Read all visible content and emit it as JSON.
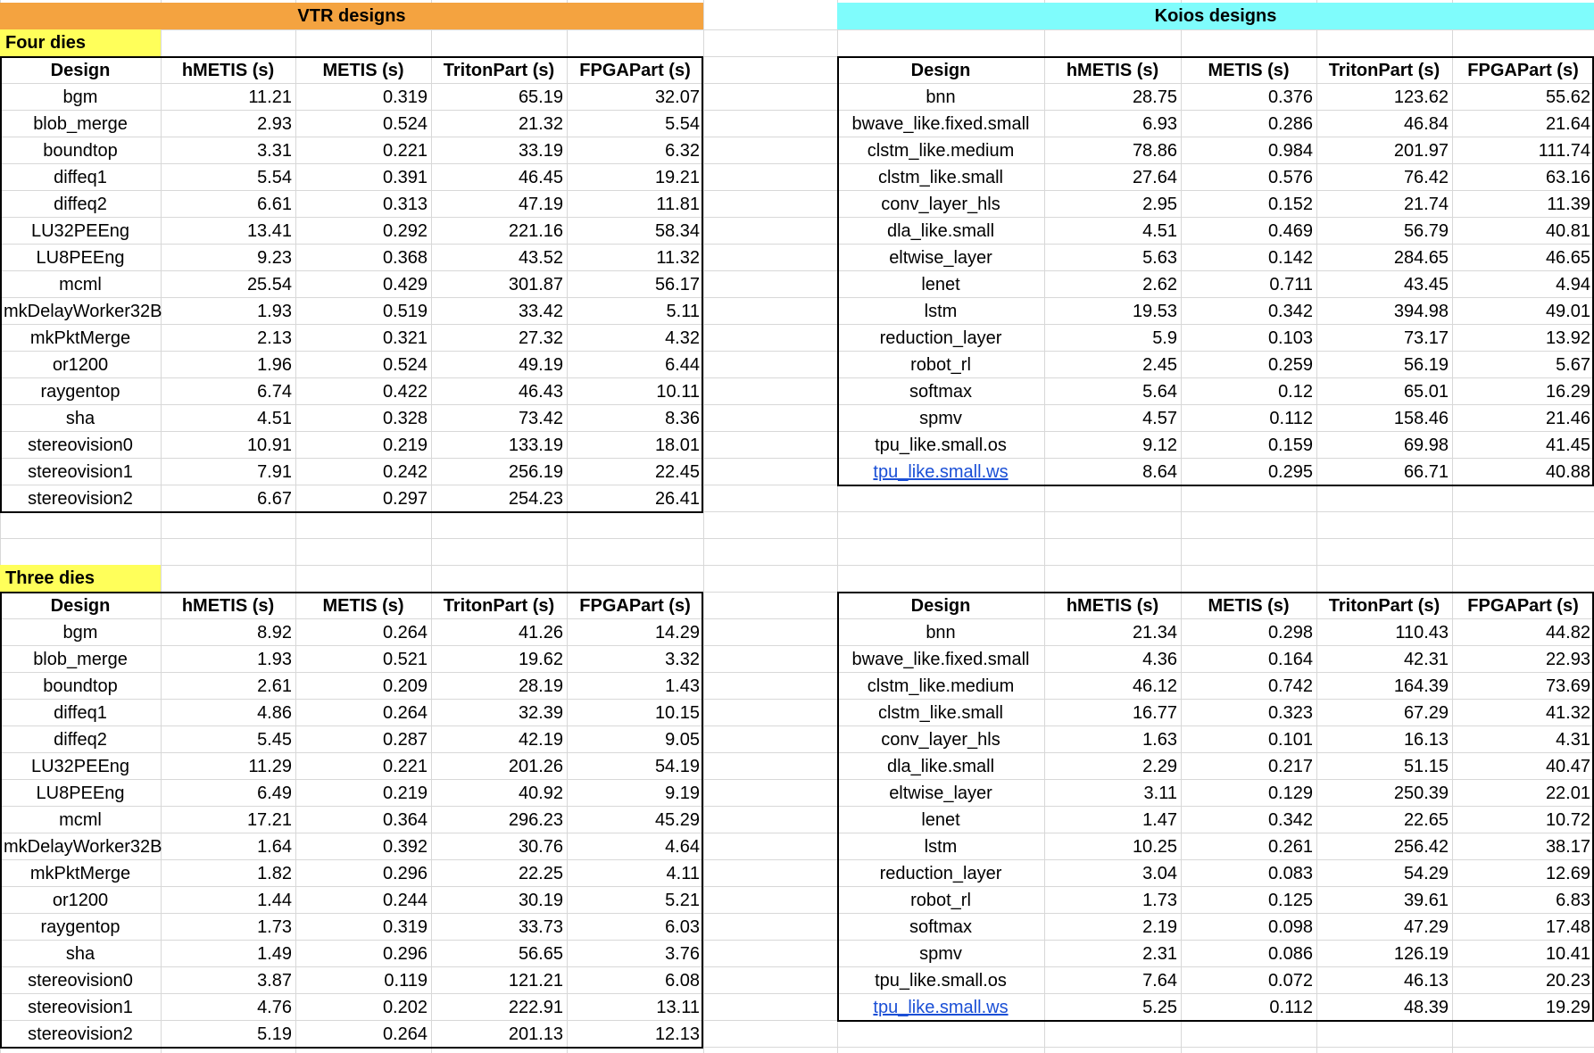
{
  "banners": {
    "vtr": {
      "label": "VTR designs",
      "color": "#f4a340"
    },
    "koios": {
      "label": "Koios designs",
      "color": "#7ffcfc"
    }
  },
  "sections": {
    "four": {
      "label": "Four dies",
      "color": "#ffff5a"
    },
    "three": {
      "label": "Three dies",
      "color": "#ffff5a"
    }
  },
  "columns": [
    "Design",
    "hMETIS (s)",
    "METIS (s)",
    "TritonPart (s)",
    "FPGAPart (s)"
  ],
  "tables": {
    "vtr_four": [
      [
        "bgm",
        "11.21",
        "0.319",
        "65.19",
        "32.07"
      ],
      [
        "blob_merge",
        "2.93",
        "0.524",
        "21.32",
        "5.54"
      ],
      [
        "boundtop",
        "3.31",
        "0.221",
        "33.19",
        "6.32"
      ],
      [
        "diffeq1",
        "5.54",
        "0.391",
        "46.45",
        "19.21"
      ],
      [
        "diffeq2",
        "6.61",
        "0.313",
        "47.19",
        "11.81"
      ],
      [
        "LU32PEEng",
        "13.41",
        "0.292",
        "221.16",
        "58.34"
      ],
      [
        "LU8PEEng",
        "9.23",
        "0.368",
        "43.52",
        "11.32"
      ],
      [
        "mcml",
        "25.54",
        "0.429",
        "301.87",
        "56.17"
      ],
      [
        "mkDelayWorker32B",
        "1.93",
        "0.519",
        "33.42",
        "5.11"
      ],
      [
        "mkPktMerge",
        "2.13",
        "0.321",
        "27.32",
        "4.32"
      ],
      [
        "or1200",
        "1.96",
        "0.524",
        "49.19",
        "6.44"
      ],
      [
        "raygentop",
        "6.74",
        "0.422",
        "46.43",
        "10.11"
      ],
      [
        "sha",
        "4.51",
        "0.328",
        "73.42",
        "8.36"
      ],
      [
        "stereovision0",
        "10.91",
        "0.219",
        "133.19",
        "18.01"
      ],
      [
        "stereovision1",
        "7.91",
        "0.242",
        "256.19",
        "22.45"
      ],
      [
        "stereovision2",
        "6.67",
        "0.297",
        "254.23",
        "26.41"
      ]
    ],
    "koios_four": [
      [
        "bnn",
        "28.75",
        "0.376",
        "123.62",
        "55.62"
      ],
      [
        "bwave_like.fixed.small",
        "6.93",
        "0.286",
        "46.84",
        "21.64"
      ],
      [
        "clstm_like.medium",
        "78.86",
        "0.984",
        "201.97",
        "111.74"
      ],
      [
        "clstm_like.small",
        "27.64",
        "0.576",
        "76.42",
        "63.16"
      ],
      [
        "conv_layer_hls",
        "2.95",
        "0.152",
        "21.74",
        "11.39"
      ],
      [
        "dla_like.small",
        "4.51",
        "0.469",
        "56.79",
        "40.81"
      ],
      [
        "eltwise_layer",
        "5.63",
        "0.142",
        "284.65",
        "46.65"
      ],
      [
        "lenet",
        "2.62",
        "0.711",
        "43.45",
        "4.94"
      ],
      [
        "lstm",
        "19.53",
        "0.342",
        "394.98",
        "49.01"
      ],
      [
        "reduction_layer",
        "5.9",
        "0.103",
        "73.17",
        "13.92"
      ],
      [
        "robot_rl",
        "2.45",
        "0.259",
        "56.19",
        "5.67"
      ],
      [
        "softmax",
        "5.64",
        "0.12",
        "65.01",
        "16.29"
      ],
      [
        "spmv",
        "4.57",
        "0.112",
        "158.46",
        "21.46"
      ],
      [
        "tpu_like.small.os",
        "9.12",
        "0.159",
        "69.98",
        "41.45"
      ],
      [
        "tpu_like.small.ws",
        "8.64",
        "0.295",
        "66.71",
        "40.88"
      ]
    ],
    "vtr_three": [
      [
        "bgm",
        "8.92",
        "0.264",
        "41.26",
        "14.29"
      ],
      [
        "blob_merge",
        "1.93",
        "0.521",
        "19.62",
        "3.32"
      ],
      [
        "boundtop",
        "2.61",
        "0.209",
        "28.19",
        "1.43"
      ],
      [
        "diffeq1",
        "4.86",
        "0.264",
        "32.39",
        "10.15"
      ],
      [
        "diffeq2",
        "5.45",
        "0.287",
        "42.19",
        "9.05"
      ],
      [
        "LU32PEEng",
        "11.29",
        "0.221",
        "201.26",
        "54.19"
      ],
      [
        "LU8PEEng",
        "6.49",
        "0.219",
        "40.92",
        "9.19"
      ],
      [
        "mcml",
        "17.21",
        "0.364",
        "296.23",
        "45.29"
      ],
      [
        "mkDelayWorker32B",
        "1.64",
        "0.392",
        "30.76",
        "4.64"
      ],
      [
        "mkPktMerge",
        "1.82",
        "0.296",
        "22.25",
        "4.11"
      ],
      [
        "or1200",
        "1.44",
        "0.244",
        "30.19",
        "5.21"
      ],
      [
        "raygentop",
        "1.73",
        "0.319",
        "33.73",
        "6.03"
      ],
      [
        "sha",
        "1.49",
        "0.296",
        "56.65",
        "3.76"
      ],
      [
        "stereovision0",
        "3.87",
        "0.119",
        "121.21",
        "6.08"
      ],
      [
        "stereovision1",
        "4.76",
        "0.202",
        "222.91",
        "13.11"
      ],
      [
        "stereovision2",
        "5.19",
        "0.264",
        "201.13",
        "12.13"
      ]
    ],
    "koios_three": [
      [
        "bnn",
        "21.34",
        "0.298",
        "110.43",
        "44.82"
      ],
      [
        "bwave_like.fixed.small",
        "4.36",
        "0.164",
        "42.31",
        "22.93"
      ],
      [
        "clstm_like.medium",
        "46.12",
        "0.742",
        "164.39",
        "73.69"
      ],
      [
        "clstm_like.small",
        "16.77",
        "0.323",
        "67.29",
        "41.32"
      ],
      [
        "conv_layer_hls",
        "1.63",
        "0.101",
        "16.13",
        "4.31"
      ],
      [
        "dla_like.small",
        "2.29",
        "0.217",
        "51.15",
        "40.47"
      ],
      [
        "eltwise_layer",
        "3.11",
        "0.129",
        "250.39",
        "22.01"
      ],
      [
        "lenet",
        "1.47",
        "0.342",
        "22.65",
        "10.72"
      ],
      [
        "lstm",
        "10.25",
        "0.261",
        "256.42",
        "38.17"
      ],
      [
        "reduction_layer",
        "3.04",
        "0.083",
        "54.29",
        "12.69"
      ],
      [
        "robot_rl",
        "1.73",
        "0.125",
        "39.61",
        "6.83"
      ],
      [
        "softmax",
        "2.19",
        "0.098",
        "47.29",
        "17.48"
      ],
      [
        "spmv",
        "2.31",
        "0.086",
        "126.19",
        "10.41"
      ],
      [
        "tpu_like.small.os",
        "7.64",
        "0.072",
        "46.13",
        "20.23"
      ],
      [
        "tpu_like.small.ws",
        "5.25",
        "0.112",
        "48.39",
        "19.29"
      ]
    ]
  },
  "link_cells": [
    "tpu_like.small.ws"
  ]
}
